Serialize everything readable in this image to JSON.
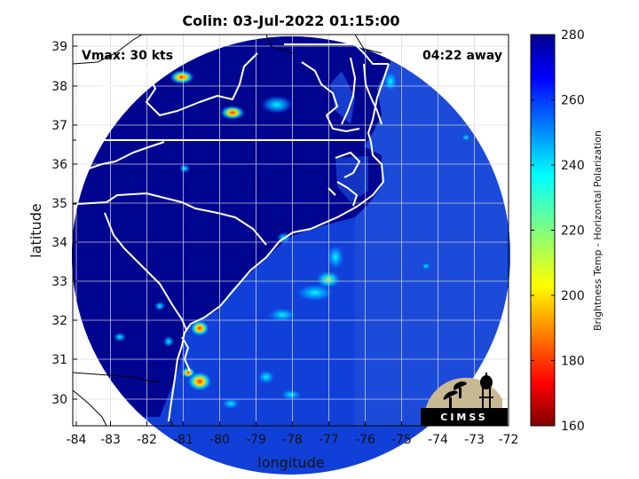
{
  "title": "Colin: 03-Jul-2022 01:15:00",
  "xlabel": "longitude",
  "ylabel": "latitude",
  "vmax_text": "Vmax: 30 kts",
  "away_text": "04:22 away",
  "logo_text": "CIMSS",
  "colorbar": {
    "label": "Brightness Temp - Horizontal Polarization",
    "ticks": [
      "280",
      "260",
      "240",
      "220",
      "200",
      "180",
      "160"
    ],
    "min": 160,
    "max": 280,
    "colormap": "jet",
    "low_color": "#7f0000",
    "high_color": "#00008f"
  },
  "map": {
    "x_ticks": [
      "-84",
      "-83",
      "-82",
      "-81",
      "-80",
      "-79",
      "-78",
      "-77",
      "-76",
      "-75",
      "-74",
      "-73",
      "-72"
    ],
    "y_ticks": [
      "39",
      "38",
      "37",
      "36",
      "35",
      "34",
      "33",
      "32",
      "31",
      "30"
    ],
    "xlim": [
      -84.2,
      -72
    ],
    "ylim": [
      29.3,
      39.3
    ],
    "grid": true,
    "coverage": "circular swath",
    "land_color": "#000590",
    "ocean_color": "#1140d8",
    "coastline_color": "#ffffff"
  }
}
